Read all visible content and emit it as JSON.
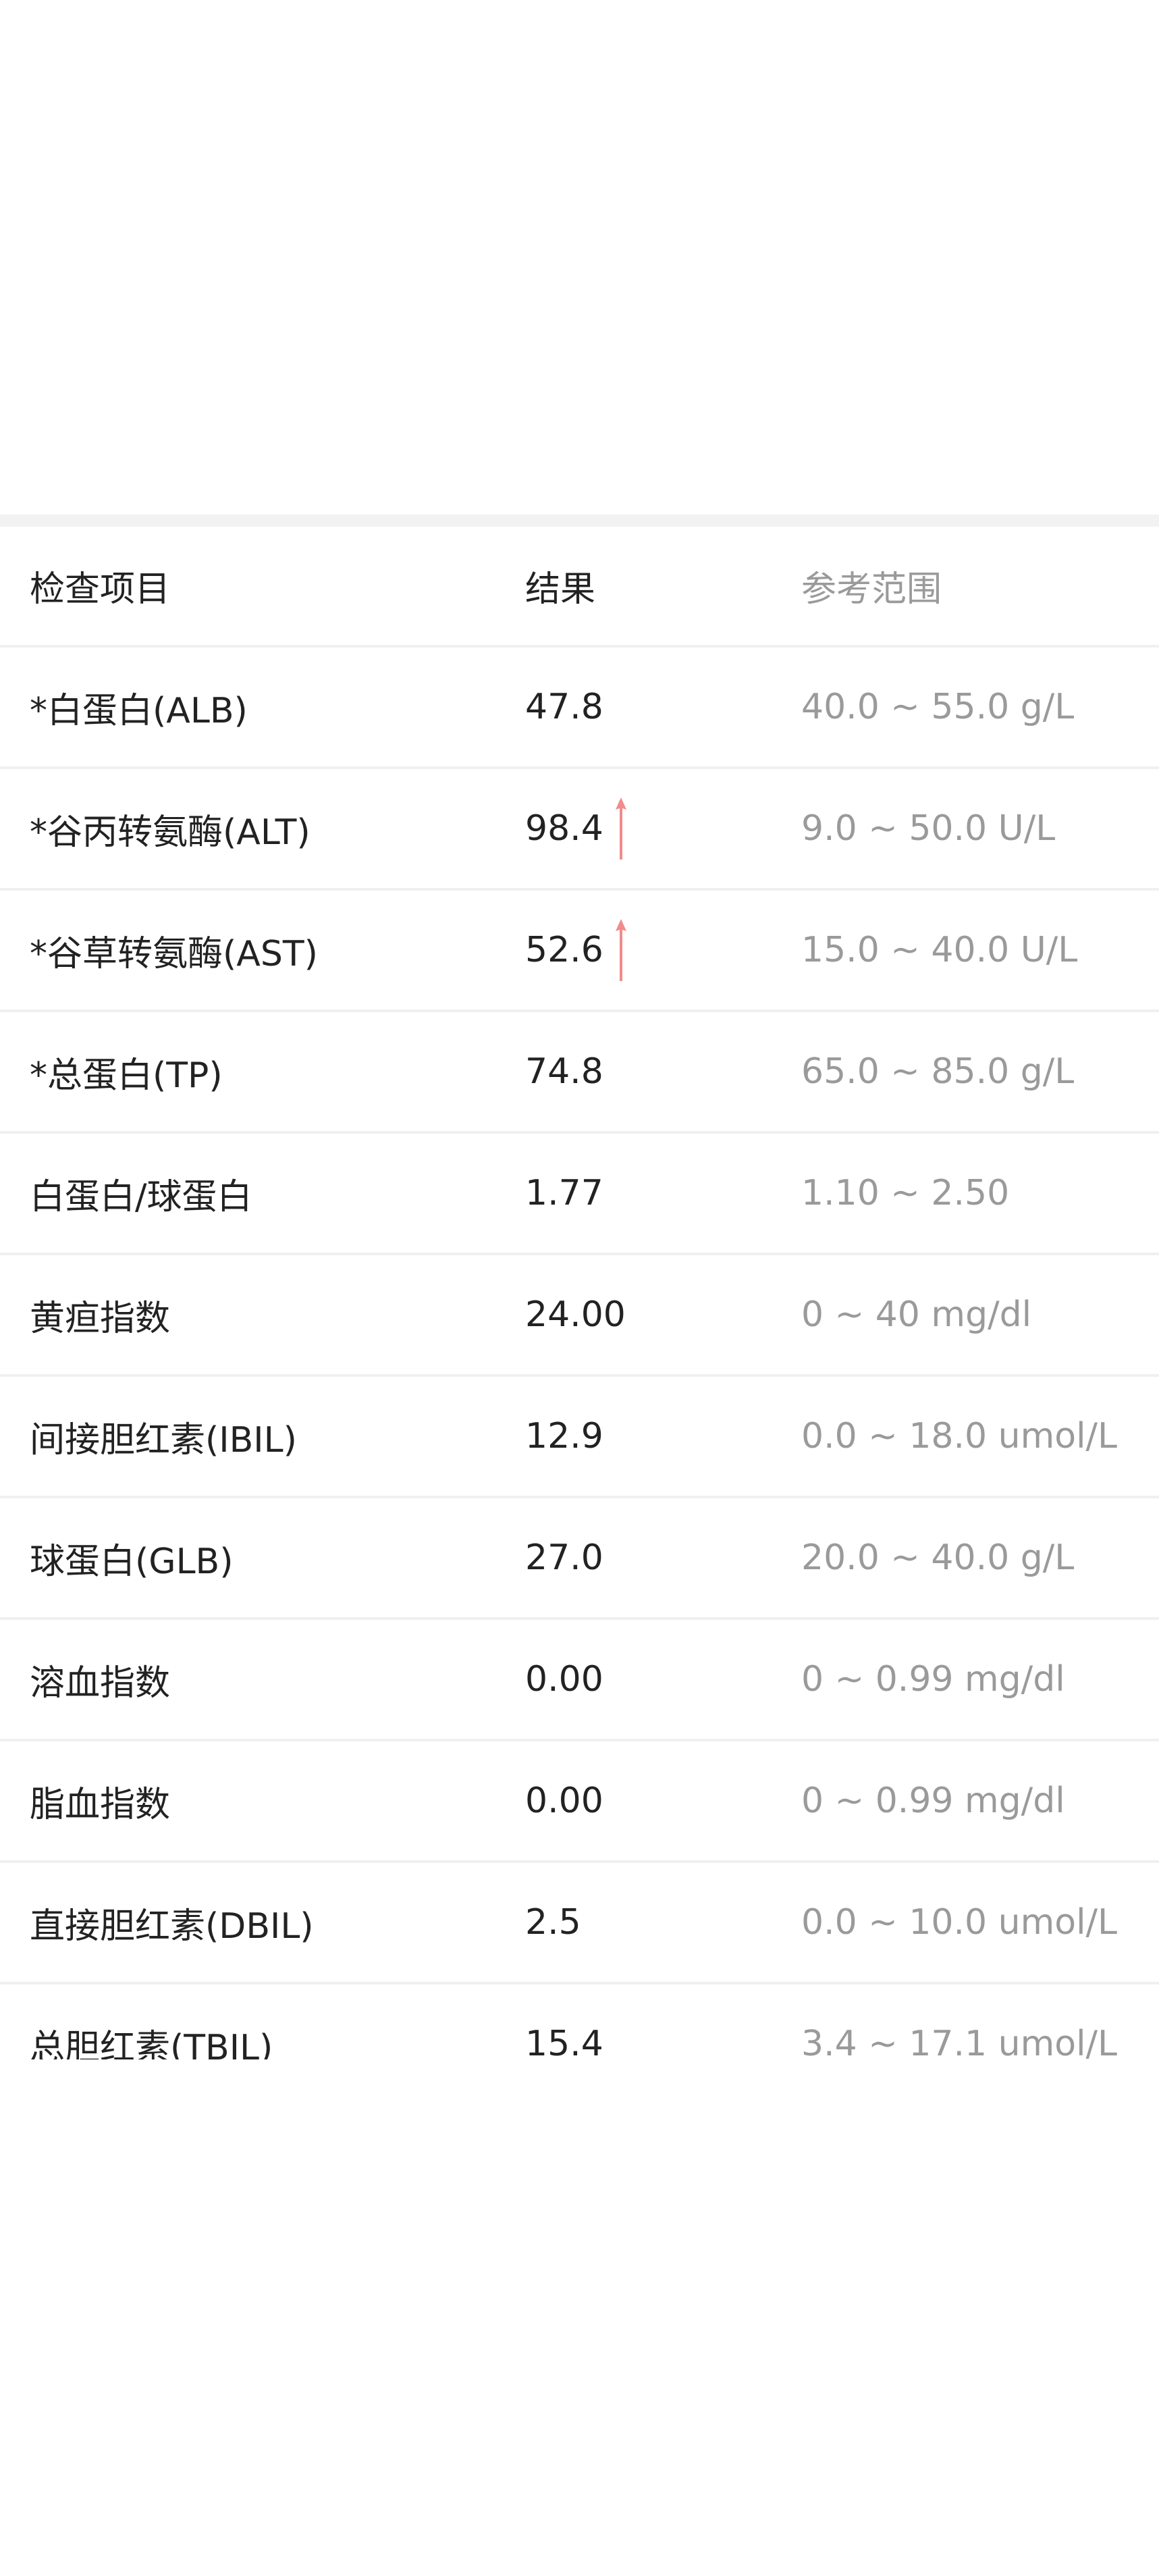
{
  "colors": {
    "divider": "#f0f0f0",
    "reference_text": "#9a9a9a",
    "high_arrow": "#f28b8b"
  },
  "table": {
    "headers": {
      "item": "检查项目",
      "result": "结果",
      "reference": "参考范围"
    },
    "rows": [
      {
        "item": "*白蛋白(ALB)",
        "result": "47.8",
        "reference": "40.0 ~ 55.0 g/L",
        "flag": ""
      },
      {
        "item": "*谷丙转氨酶(ALT)",
        "result": "98.4",
        "reference": "9.0 ~ 50.0 U/L",
        "flag": "high",
        "flag_icon": "arrow-up-icon"
      },
      {
        "item": "*谷草转氨酶(AST)",
        "result": "52.6",
        "reference": "15.0 ~ 40.0 U/L",
        "flag": "high",
        "flag_icon": "arrow-up-icon"
      },
      {
        "item": "*总蛋白(TP)",
        "result": "74.8",
        "reference": "65.0 ~ 85.0 g/L",
        "flag": ""
      },
      {
        "item": "白蛋白/球蛋白",
        "result": "1.77",
        "reference": "1.10 ~ 2.50",
        "flag": ""
      },
      {
        "item": "黄疸指数",
        "result": "24.00",
        "reference": "0 ~ 40 mg/dl",
        "flag": ""
      },
      {
        "item": "间接胆红素(IBIL)",
        "result": "12.9",
        "reference": "0.0 ~ 18.0 umol/L",
        "flag": ""
      },
      {
        "item": "球蛋白(GLB)",
        "result": "27.0",
        "reference": "20.0 ~ 40.0 g/L",
        "flag": ""
      },
      {
        "item": "溶血指数",
        "result": "0.00",
        "reference": "0 ~ 0.99 mg/dl",
        "flag": ""
      },
      {
        "item": "脂血指数",
        "result": "0.00",
        "reference": "0 ~ 0.99 mg/dl",
        "flag": ""
      },
      {
        "item": "直接胆红素(DBIL)",
        "result": "2.5",
        "reference": "0.0 ~ 10.0 umol/L",
        "flag": ""
      },
      {
        "item": "总胆红素(TBIL)",
        "result": "15.4",
        "reference": "3.4 ~ 17.1 umol/L",
        "flag": ""
      }
    ]
  }
}
